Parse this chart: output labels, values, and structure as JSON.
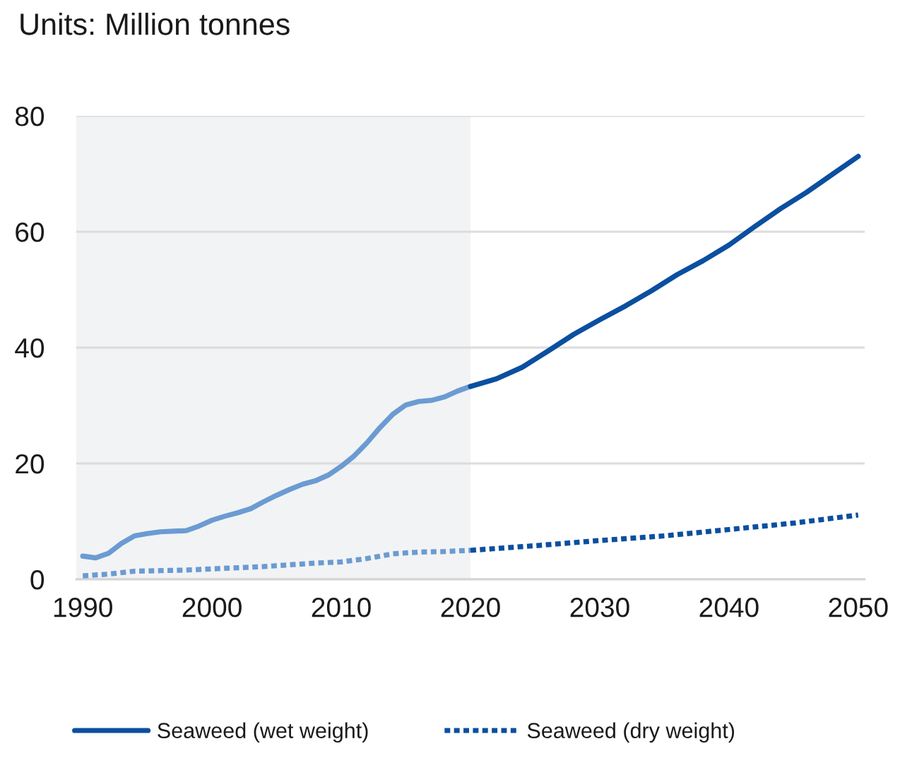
{
  "chart_data": {
    "type": "line",
    "title": "Units: Million tonnes",
    "xlim": [
      1989.5,
      2050.5
    ],
    "xticks": [
      1990,
      2000,
      2010,
      2020,
      2030,
      2040,
      2050
    ],
    "ylim": [
      0,
      80
    ],
    "yticks": [
      0,
      20,
      40,
      60,
      80
    ],
    "grid": "y",
    "legend": "bottom",
    "bands": [
      {
        "axis": "x",
        "from": 1989.5,
        "to": 2020,
        "color": "#f2f3f5"
      }
    ],
    "series": [
      {
        "color": "#6b9bd2",
        "line_style": "solid",
        "x": [
          1990,
          1991,
          1992,
          1993,
          1994,
          1995,
          1996,
          1997,
          1998,
          1999,
          2000,
          2001,
          2002,
          2003,
          2004,
          2005,
          2006,
          2007,
          2008,
          2009,
          2010,
          2011,
          2012,
          2013,
          2014,
          2015,
          2016,
          2017,
          2018,
          2019,
          2020
        ],
        "values": [
          4.0,
          3.7,
          4.5,
          6.2,
          7.5,
          7.9,
          8.2,
          8.3,
          8.4,
          9.2,
          10.2,
          10.9,
          11.5,
          12.2,
          13.4,
          14.5,
          15.5,
          16.4,
          17.0,
          18.0,
          19.5,
          21.3,
          23.6,
          26.2,
          28.5,
          30.1,
          30.7,
          30.9,
          31.5,
          32.5,
          33.3
        ]
      },
      {
        "name": "Seaweed (wet weight)",
        "color": "#0b4f9f",
        "line_style": "solid",
        "x": [
          2020,
          2022,
          2024,
          2026,
          2028,
          2030,
          2032,
          2034,
          2036,
          2038,
          2040,
          2042,
          2044,
          2046,
          2048,
          2050
        ],
        "values": [
          33.3,
          34.6,
          36.6,
          39.4,
          42.3,
          44.8,
          47.2,
          49.8,
          52.6,
          55.0,
          57.7,
          60.9,
          64.0,
          66.8,
          69.9,
          73.0
        ]
      },
      {
        "color": "#6b9bd2",
        "line_style": "dotted",
        "x": [
          1990,
          1992,
          1994,
          1996,
          1998,
          2000,
          2002,
          2004,
          2006,
          2008,
          2010,
          2012,
          2014,
          2016,
          2018,
          2020
        ],
        "values": [
          0.6,
          0.9,
          1.4,
          1.5,
          1.6,
          1.8,
          2.0,
          2.2,
          2.5,
          2.8,
          3.0,
          3.6,
          4.4,
          4.7,
          4.8,
          5.0
        ]
      },
      {
        "name": "Seaweed (dry weight)",
        "color": "#0b4f9f",
        "line_style": "dotted",
        "x": [
          2020,
          2025,
          2030,
          2035,
          2040,
          2045,
          2050
        ],
        "values": [
          5.0,
          5.8,
          6.7,
          7.5,
          8.6,
          9.7,
          11.1
        ]
      }
    ]
  }
}
